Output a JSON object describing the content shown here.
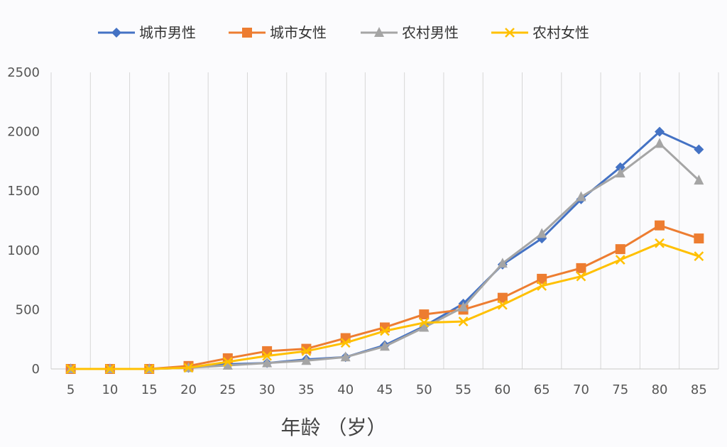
{
  "chart_data": {
    "type": "line",
    "xlabel": "年龄 （岁）",
    "ylabel": "",
    "categories": [
      "5",
      "10",
      "15",
      "20",
      "25",
      "30",
      "35",
      "40",
      "45",
      "50",
      "55",
      "60",
      "65",
      "70",
      "75",
      "80",
      "85"
    ],
    "ylim": [
      0,
      2500
    ],
    "yticks": [
      "0",
      "500",
      "1000",
      "1500",
      "2000",
      "2500"
    ],
    "grid": "vertical",
    "legend": "top",
    "series": [
      {
        "name": "城市男性",
        "color": "#4472c4",
        "marker": "diamond",
        "values": [
          0,
          0,
          0,
          10,
          40,
          50,
          80,
          100,
          200,
          360,
          550,
          880,
          1100,
          1430,
          1700,
          2000,
          1850
        ]
      },
      {
        "name": "城市女性",
        "color": "#ed7d31",
        "marker": "square",
        "values": [
          0,
          0,
          0,
          25,
          90,
          150,
          170,
          260,
          350,
          460,
          500,
          600,
          760,
          850,
          1010,
          1210,
          1100
        ]
      },
      {
        "name": "农村男性",
        "color": "#a5a5a5",
        "marker": "triangle",
        "values": [
          0,
          0,
          0,
          10,
          30,
          50,
          70,
          100,
          190,
          350,
          520,
          890,
          1140,
          1450,
          1650,
          1900,
          1590
        ]
      },
      {
        "name": "农村女性",
        "color": "#ffc000",
        "marker": "x",
        "values": [
          0,
          0,
          0,
          10,
          60,
          110,
          150,
          220,
          320,
          390,
          400,
          540,
          700,
          780,
          920,
          1060,
          950
        ]
      }
    ]
  }
}
